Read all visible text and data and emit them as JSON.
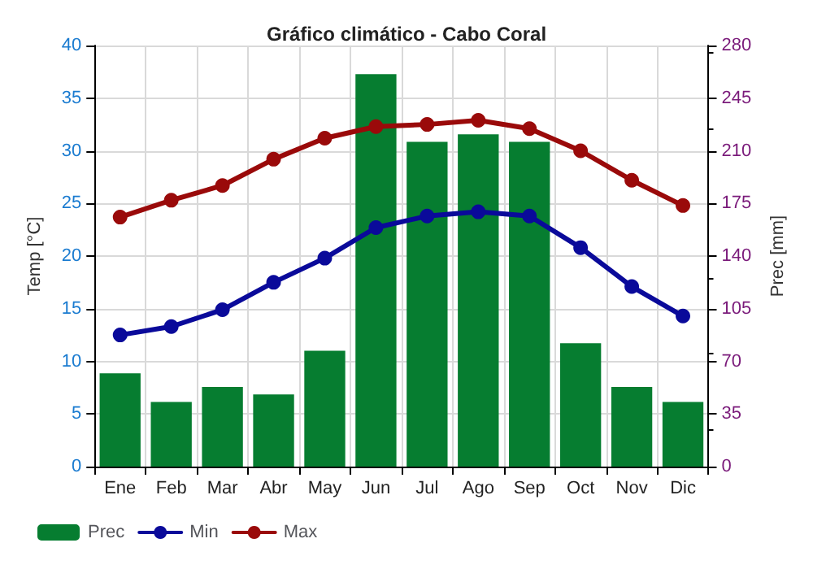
{
  "chart_data": {
    "type": "bar",
    "title": "Gráfico climático - Cabo Coral",
    "categories": [
      "Ene",
      "Feb",
      "Mar",
      "Abr",
      "May",
      "Jun",
      "Jul",
      "Ago",
      "Sep",
      "Oct",
      "Nov",
      "Dic"
    ],
    "series": [
      {
        "name": "Prec",
        "axis": "y2",
        "color": "#067d30",
        "values": [
          62,
          43,
          53,
          48,
          77,
          261,
          216,
          221,
          216,
          82,
          53,
          43
        ]
      },
      {
        "name": "Min",
        "type": "line",
        "color": "#0a0a9a",
        "values": [
          12.5,
          13.3,
          14.9,
          17.5,
          19.8,
          22.7,
          23.8,
          24.2,
          23.8,
          20.8,
          17.1,
          14.3
        ]
      },
      {
        "name": "Max",
        "type": "line",
        "color": "#9a0a0a",
        "values": [
          23.7,
          25.3,
          26.7,
          29.2,
          31.2,
          32.3,
          32.5,
          32.9,
          32.1,
          30.0,
          27.2,
          24.8
        ]
      }
    ],
    "ylabel": "Temp [°C]",
    "y2label": "Prec [mm]",
    "ylim": [
      0,
      40
    ],
    "yticks": [
      0,
      5,
      10,
      15,
      20,
      25,
      30,
      35,
      40
    ],
    "y2lim": [
      0,
      280
    ],
    "y2ticks": [
      0,
      35,
      70,
      105,
      140,
      175,
      210,
      245,
      280
    ],
    "grid": true,
    "legend": "bottom left",
    "marker": "circle",
    "line_style": "solid"
  }
}
